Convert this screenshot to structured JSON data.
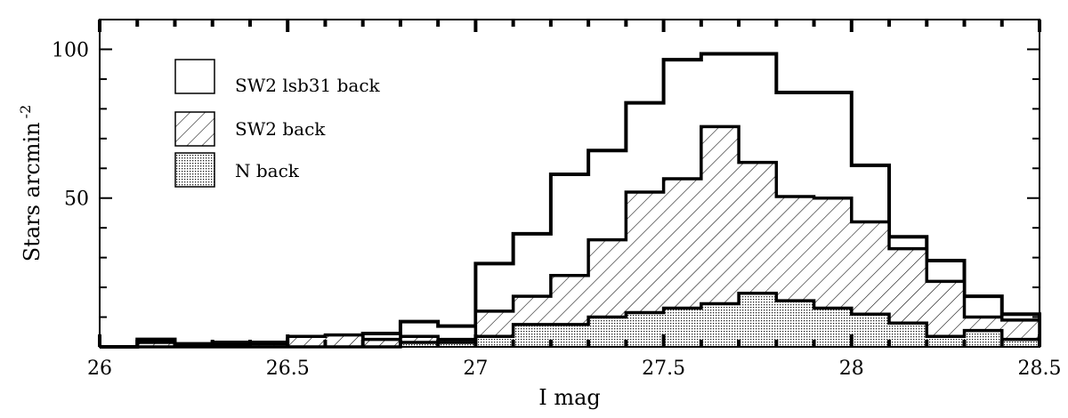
{
  "chart_data": {
    "type": "histogram",
    "xlabel": "I mag",
    "ylabel_main": "Stars arcmin",
    "ylabel_sup": "-2",
    "xlim": [
      26,
      28.5
    ],
    "ylim": [
      0,
      110
    ],
    "x_ticks": [
      26,
      26.5,
      27,
      27.5,
      28,
      28.5
    ],
    "x_tick_labels": [
      "26",
      "26.5",
      "27",
      "27.5",
      "28",
      "28.5"
    ],
    "y_ticks": [
      50,
      100
    ],
    "y_tick_labels": [
      "50",
      "100"
    ],
    "bin_width": 0.1,
    "bin_edges": [
      26.0,
      26.1,
      26.2,
      26.3,
      26.4,
      26.5,
      26.6,
      26.7,
      26.8,
      26.9,
      27.0,
      27.1,
      27.2,
      27.3,
      27.4,
      27.5,
      27.6,
      27.7,
      27.8,
      27.9,
      28.0,
      28.1,
      28.2,
      28.3,
      28.4,
      28.5
    ],
    "legend_position": "top-left",
    "series": [
      {
        "name": "SW2 lsb31 back",
        "style": "open",
        "values": [
          0,
          2.5,
          1.0,
          1.5,
          1.5,
          2.5,
          3.5,
          4.5,
          8.5,
          7.0,
          28.0,
          38.0,
          58.0,
          66.0,
          82.0,
          96.5,
          98.5,
          98.5,
          85.5,
          85.5,
          61.0,
          37.0,
          29.0,
          17.0,
          11.0
        ]
      },
      {
        "name": "SW2 back",
        "style": "hatched",
        "values": [
          0,
          1.5,
          0.5,
          0.5,
          1.0,
          3.5,
          4.0,
          2.5,
          3.5,
          2.5,
          12.0,
          17.0,
          24.0,
          36.0,
          52.0,
          56.5,
          74.0,
          62.0,
          50.5,
          50.0,
          42.0,
          33.0,
          22.0,
          10.0,
          9.0
        ]
      },
      {
        "name": "N back",
        "style": "dotted",
        "values": [
          0,
          0,
          0,
          0,
          0,
          0,
          0,
          0,
          1.5,
          1.5,
          3.5,
          7.5,
          7.5,
          10.0,
          11.5,
          13.0,
          14.5,
          18.0,
          15.5,
          13.0,
          11.0,
          8.0,
          3.5,
          5.5,
          2.5
        ]
      }
    ]
  }
}
